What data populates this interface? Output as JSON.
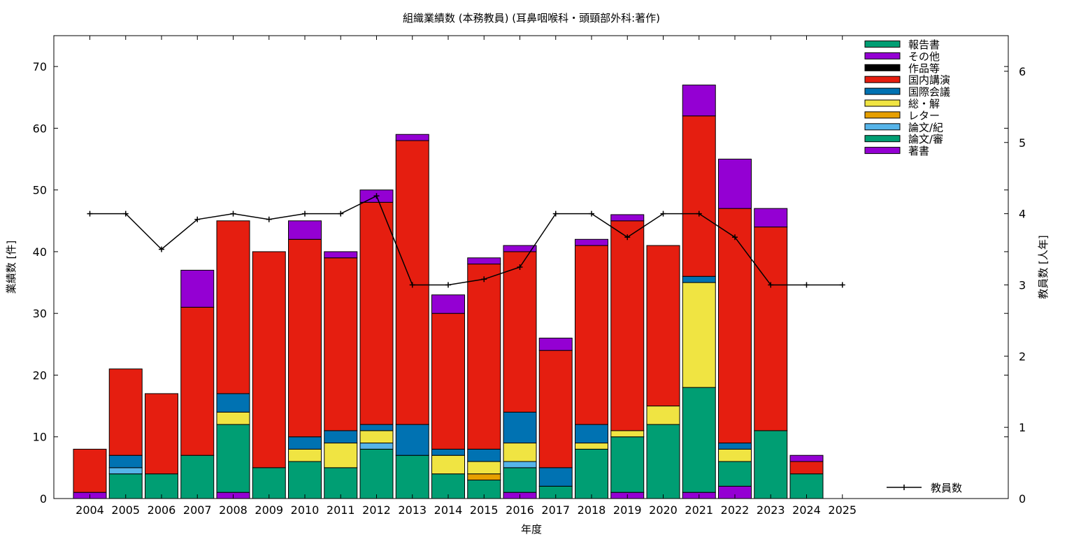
{
  "chart_data": {
    "type": "bar",
    "title": "組織業績数 (本務教員) (耳鼻咽喉科・頭頸部外科:著作)",
    "xlabel": "年度",
    "ylabel": "業績数 [件]",
    "y2label": "教員数 [人年]",
    "ylim": [
      0,
      75
    ],
    "y2lim": [
      0,
      6.5
    ],
    "yticks": [
      "0",
      "10",
      "20",
      "30",
      "40",
      "50",
      "60",
      "70"
    ],
    "y2ticks": [
      "0",
      "1",
      "2",
      "3",
      "4",
      "5",
      "6"
    ],
    "categories": [
      "2004",
      "2005",
      "2006",
      "2007",
      "2008",
      "2009",
      "2010",
      "2011",
      "2012",
      "2013",
      "2014",
      "2015",
      "2016",
      "2017",
      "2018",
      "2019",
      "2020",
      "2021",
      "2022",
      "2023",
      "2024",
      "2025"
    ],
    "legend_position": "top-right",
    "series": [
      {
        "name": "著書",
        "color": "#9400d3",
        "values": [
          1,
          0,
          0,
          0,
          1,
          0,
          0,
          0,
          0,
          0,
          0,
          0,
          1,
          0,
          0,
          1,
          0,
          1,
          2,
          0,
          0,
          0
        ]
      },
      {
        "name": "論文/審",
        "color": "#009e73",
        "values": [
          0,
          4,
          4,
          7,
          11,
          5,
          6,
          5,
          8,
          7,
          4,
          3,
          4,
          2,
          8,
          9,
          12,
          17,
          4,
          11,
          4,
          0
        ]
      },
      {
        "name": "論文/紀",
        "color": "#56b4e9",
        "values": [
          0,
          1,
          0,
          0,
          0,
          0,
          0,
          0,
          1,
          0,
          0,
          0,
          1,
          0,
          0,
          0,
          0,
          0,
          0,
          0,
          0,
          0
        ]
      },
      {
        "name": "レター",
        "color": "#e69f00",
        "values": [
          0,
          0,
          0,
          0,
          0,
          0,
          0,
          0,
          0,
          0,
          0,
          1,
          0,
          0,
          0,
          0,
          0,
          0,
          0,
          0,
          0,
          0
        ]
      },
      {
        "name": "総・解",
        "color": "#f0e442",
        "values": [
          0,
          0,
          0,
          0,
          2,
          0,
          2,
          4,
          2,
          0,
          3,
          2,
          3,
          0,
          1,
          1,
          3,
          17,
          2,
          0,
          0,
          0
        ]
      },
      {
        "name": "国際会議",
        "color": "#0072b2",
        "values": [
          0,
          2,
          0,
          0,
          3,
          0,
          2,
          2,
          1,
          5,
          1,
          2,
          5,
          3,
          3,
          0,
          0,
          1,
          1,
          0,
          0,
          0
        ]
      },
      {
        "name": "国内講演",
        "color": "#e51e10",
        "values": [
          7,
          14,
          13,
          24,
          28,
          35,
          32,
          28,
          36,
          46,
          22,
          30,
          26,
          19,
          29,
          34,
          26,
          26,
          38,
          33,
          2,
          0
        ]
      },
      {
        "name": "作品等",
        "color": "#000000",
        "values": [
          0,
          0,
          0,
          0,
          0,
          0,
          0,
          0,
          0,
          0,
          0,
          0,
          0,
          0,
          0,
          0,
          0,
          0,
          0,
          0,
          0,
          0
        ]
      },
      {
        "name": "その他",
        "color": "#9400d3",
        "values": [
          0,
          0,
          0,
          6,
          0,
          0,
          3,
          1,
          2,
          1,
          3,
          1,
          1,
          2,
          1,
          1,
          0,
          5,
          8,
          3,
          1,
          0
        ]
      },
      {
        "name": "報告書",
        "color": "#009e73",
        "values": [
          0,
          0,
          0,
          0,
          0,
          0,
          0,
          0,
          0,
          0,
          0,
          0,
          0,
          0,
          0,
          0,
          0,
          0,
          0,
          0,
          0,
          0
        ]
      }
    ],
    "line_series": {
      "name": "教員数",
      "color": "#000000",
      "axis": "y2",
      "values": [
        4,
        4,
        3.5,
        3.92,
        4,
        3.92,
        4,
        4,
        4.25,
        3,
        3,
        3.08,
        3.25,
        4,
        4,
        3.67,
        4,
        4,
        3.67,
        3,
        3,
        3
      ]
    }
  }
}
